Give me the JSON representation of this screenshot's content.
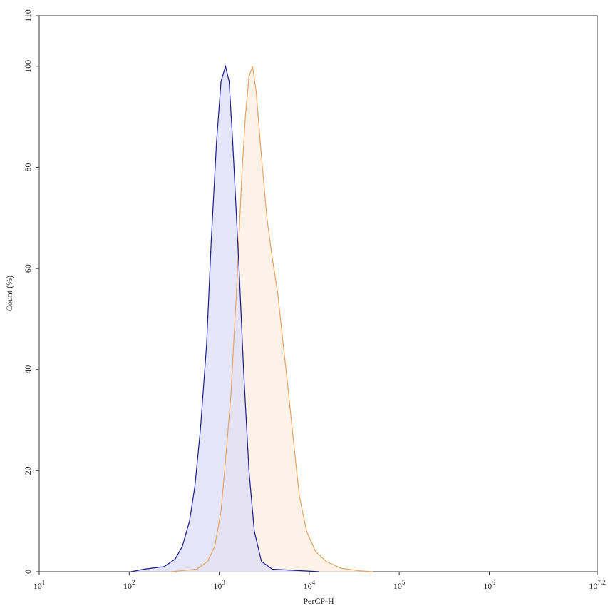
{
  "chart_data": {
    "type": "area",
    "xscale": "log",
    "xlabel": "PerCP-H",
    "ylabel": "Count (%)",
    "xlim": [
      10,
      15848932
    ],
    "ylim": [
      0,
      110
    ],
    "xticks": [
      {
        "value": 10,
        "label": "10",
        "exponent": "1"
      },
      {
        "value": 100,
        "label": "10",
        "exponent": "2"
      },
      {
        "value": 1000,
        "label": "10",
        "exponent": "3"
      },
      {
        "value": 10000,
        "label": "10",
        "exponent": "4"
      },
      {
        "value": 100000,
        "label": "10",
        "exponent": "5"
      },
      {
        "value": 1000000,
        "label": "10",
        "exponent": "6"
      },
      {
        "value": 15848932,
        "label": "10",
        "exponent": "7.2"
      }
    ],
    "yticks": [
      0,
      20,
      40,
      60,
      80,
      100,
      110
    ],
    "series": [
      {
        "color": "#e8a464",
        "fill": "#fbeee0",
        "x": [
          295,
          562,
          741,
          891,
          1047,
          1175,
          1349,
          1549,
          1778,
          1950,
          2138,
          2344,
          2570,
          2951,
          3388,
          3890,
          4467,
          5129,
          5754,
          6761,
          7762,
          9333,
          11749,
          15488,
          22387,
          35481,
          51286
        ],
        "values": [
          0,
          0.5,
          2,
          5,
          12,
          22,
          35,
          55,
          78,
          90,
          98,
          100,
          95,
          82,
          70,
          62,
          55,
          45,
          37,
          25,
          15,
          8,
          4,
          2,
          0.7,
          0.2,
          0
        ]
      },
      {
        "color": "#1c1c8a",
        "fill": "#dcdcf7",
        "x": [
          105,
          145,
          245,
          324,
          389,
          468,
          537,
          617,
          724,
          813,
          933,
          1047,
          1175,
          1288,
          1413,
          1660,
          1862,
          2138,
          2455,
          2951,
          3890,
          8128,
          12882
        ],
        "values": [
          0,
          0.5,
          1,
          2.5,
          5,
          10,
          17,
          28,
          45,
          65,
          85,
          97,
          100,
          97,
          85,
          60,
          40,
          20,
          8,
          2,
          0.5,
          0.2,
          0
        ]
      }
    ]
  }
}
